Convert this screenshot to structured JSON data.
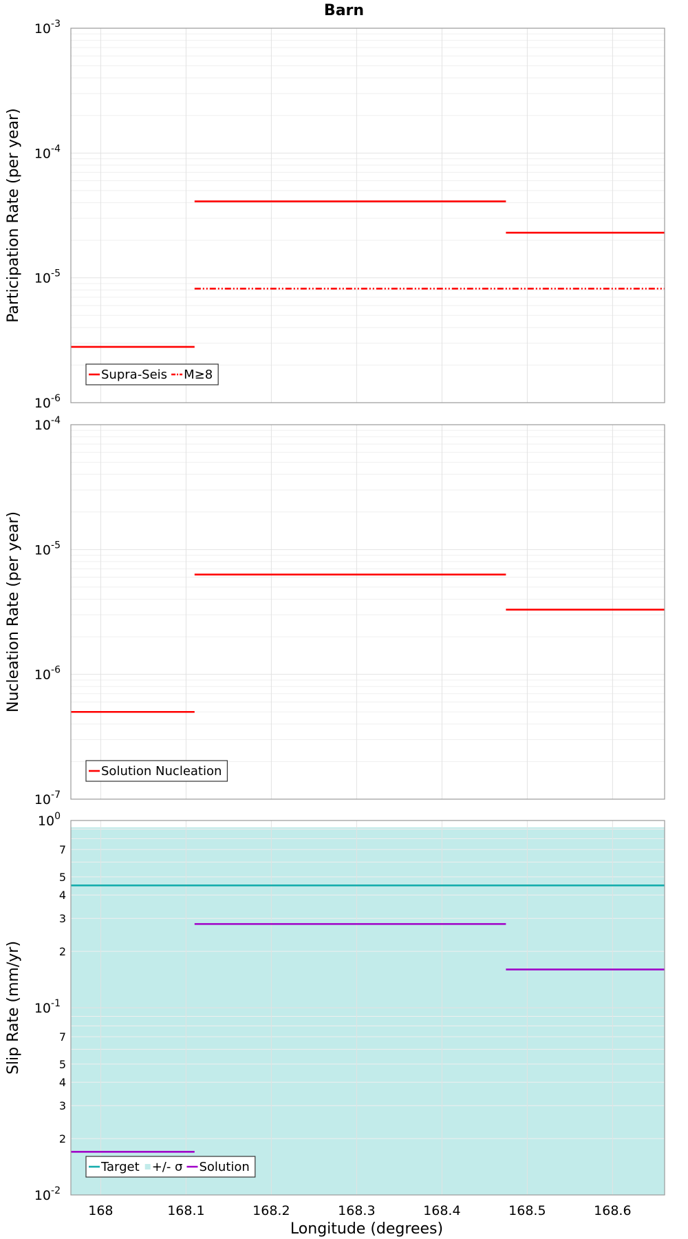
{
  "figure_title": "Barn",
  "colors": {
    "solution": "#ff0000",
    "target": "#14acac",
    "band": "#c2ebea",
    "slip_solution": "#a000c8"
  },
  "chart_data": [
    {
      "id": "participation",
      "type": "line",
      "ylabel": "Participation Rate (per year)",
      "yscale": "log",
      "ylim": [
        1e-06,
        0.001
      ],
      "xlim": [
        167.965,
        168.661
      ],
      "y_ticks": [
        {
          "value": 1e-06,
          "base": "10",
          "exp": "-6"
        },
        {
          "value": 1e-05,
          "base": "10",
          "exp": "-5"
        },
        {
          "value": 0.0001,
          "base": "10",
          "exp": "-4"
        },
        {
          "value": 0.001,
          "base": "10",
          "exp": "-3"
        }
      ],
      "series": [
        {
          "name": "Supra-Seis",
          "style": "solid",
          "color": "#ff0000",
          "segments": [
            [
              167.965,
              168.11,
              2.8e-06
            ],
            [
              168.11,
              168.475,
              4.1e-05
            ],
            [
              168.475,
              168.661,
              2.3e-05
            ]
          ]
        },
        {
          "name": "M≥8",
          "style": "dashdot",
          "color": "#ff0000",
          "segments": [
            [
              168.11,
              168.661,
              8.2e-06
            ]
          ]
        }
      ],
      "legend": {
        "position": "bottom-left",
        "entries": [
          {
            "label": "Supra-Seis",
            "style": "solid",
            "color": "#ff0000"
          },
          {
            "label": "M≥8",
            "style": "dashdot",
            "color": "#ff0000"
          }
        ]
      }
    },
    {
      "id": "nucleation",
      "type": "line",
      "ylabel": "Nucleation Rate (per year)",
      "yscale": "log",
      "ylim": [
        1e-07,
        0.0001
      ],
      "xlim": [
        167.965,
        168.661
      ],
      "y_ticks": [
        {
          "value": 1e-07,
          "base": "10",
          "exp": "-7"
        },
        {
          "value": 1e-06,
          "base": "10",
          "exp": "-6"
        },
        {
          "value": 1e-05,
          "base": "10",
          "exp": "-5"
        },
        {
          "value": 0.0001,
          "base": "10",
          "exp": "-4"
        }
      ],
      "series": [
        {
          "name": "Solution Nucleation",
          "style": "solid",
          "color": "#ff0000",
          "segments": [
            [
              167.965,
              168.11,
              5e-07
            ],
            [
              168.11,
              168.475,
              6.3e-06
            ],
            [
              168.475,
              168.661,
              3.3e-06
            ]
          ]
        }
      ],
      "legend": {
        "position": "bottom-left",
        "entries": [
          {
            "label": "Solution Nucleation",
            "style": "solid",
            "color": "#ff0000"
          }
        ]
      }
    },
    {
      "id": "slip",
      "type": "line",
      "ylabel": "Slip Rate (mm/yr)",
      "xlabel": "Longitude (degrees)",
      "yscale": "log",
      "ylim": [
        0.01,
        1
      ],
      "xlim": [
        167.965,
        168.661
      ],
      "y_ticks": [
        {
          "value": 0.01,
          "base": "10",
          "exp": "-2"
        },
        {
          "value": 0.1,
          "base": "10",
          "exp": "-1"
        },
        {
          "value": 1,
          "base": "10",
          "exp": "0"
        }
      ],
      "y_minor_ticks": [
        {
          "value": 0.02,
          "label": "2"
        },
        {
          "value": 0.03,
          "label": "3"
        },
        {
          "value": 0.04,
          "label": "4"
        },
        {
          "value": 0.05,
          "label": "5"
        },
        {
          "value": 0.07,
          "label": "7"
        },
        {
          "value": 0.2,
          "label": "2"
        },
        {
          "value": 0.3,
          "label": "3"
        },
        {
          "value": 0.4,
          "label": "4"
        },
        {
          "value": 0.5,
          "label": "5"
        },
        {
          "value": 0.7,
          "label": "7"
        }
      ],
      "x_ticks": [
        {
          "value": 168.0,
          "label": "168"
        },
        {
          "value": 168.1,
          "label": "168.1"
        },
        {
          "value": 168.2,
          "label": "168.2"
        },
        {
          "value": 168.3,
          "label": "168.3"
        },
        {
          "value": 168.4,
          "label": "168.4"
        },
        {
          "value": 168.5,
          "label": "168.5"
        },
        {
          "value": 168.6,
          "label": "168.6"
        }
      ],
      "band": {
        "name": "+/- σ",
        "low": 0.01,
        "high": 0.92,
        "color": "#c2ebea"
      },
      "series": [
        {
          "name": "Target",
          "style": "solid",
          "color": "#14acac",
          "segments": [
            [
              167.965,
              168.661,
              0.45
            ]
          ]
        },
        {
          "name": "Solution",
          "style": "solid",
          "color": "#a000c8",
          "segments": [
            [
              167.965,
              168.11,
              0.017
            ],
            [
              168.11,
              168.475,
              0.28
            ],
            [
              168.475,
              168.661,
              0.16
            ]
          ]
        }
      ],
      "legend": {
        "position": "bottom-left",
        "entries": [
          {
            "label": "Target",
            "style": "solid",
            "color": "#14acac"
          },
          {
            "label": "+/- σ",
            "style": "patch",
            "color": "#c2ebea"
          },
          {
            "label": "Solution",
            "style": "solid",
            "color": "#a000c8"
          }
        ]
      }
    }
  ]
}
